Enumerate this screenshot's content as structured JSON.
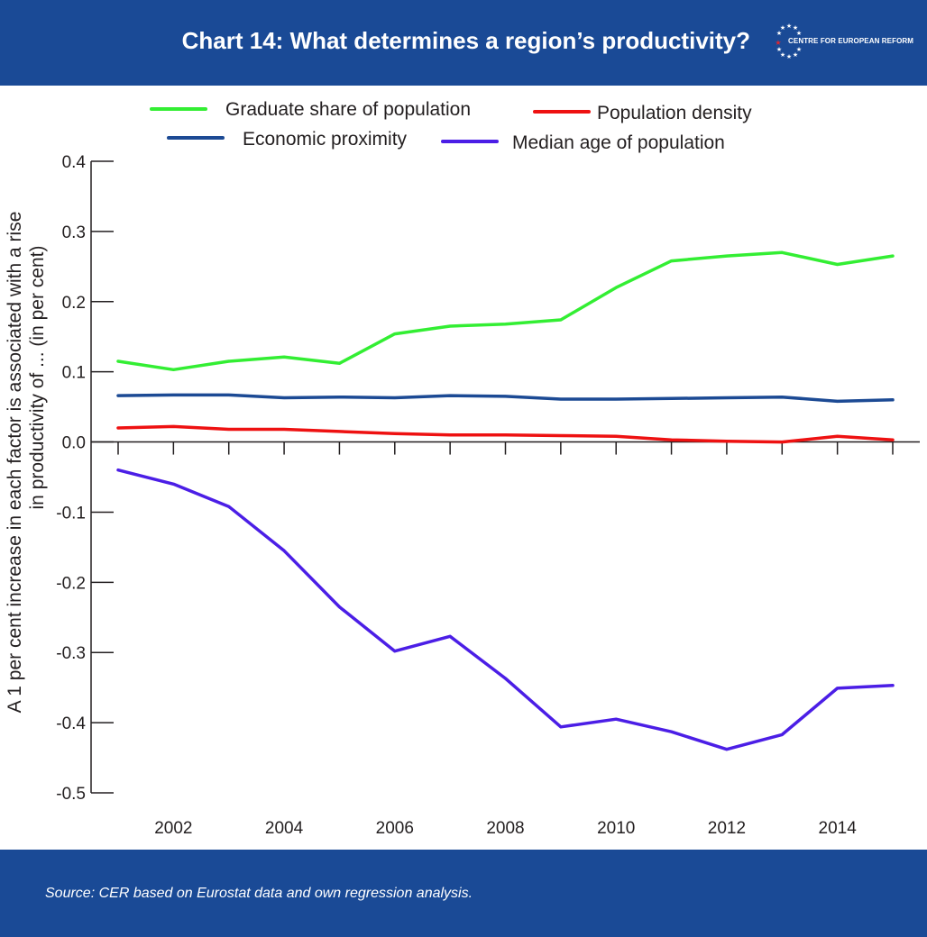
{
  "header": {
    "title": "Chart 14: What determines a region’s productivity?",
    "logo_text": "CENTRE FOR EUROPEAN REFORM"
  },
  "footer": {
    "source": "Source: CER based on Eurostat data and own regression analysis."
  },
  "colors": {
    "band": "#1a4a96",
    "graduate": "#33ee33",
    "density": "#ee1111",
    "proximity": "#1c4a94",
    "median_age": "#4b1ee6",
    "axis": "#231f20"
  },
  "chart_data": {
    "type": "line",
    "x": [
      2001,
      2002,
      2003,
      2004,
      2005,
      2006,
      2007,
      2008,
      2009,
      2010,
      2011,
      2012,
      2013,
      2014,
      2015
    ],
    "x_tick_labels": [
      "2002",
      "2004",
      "2006",
      "2008",
      "2010",
      "2012",
      "2014"
    ],
    "y_tick_labels": [
      "0.4",
      "0.3",
      "0.2",
      "0.1",
      "0.0",
      "-0.1",
      "-0.2",
      "-0.3",
      "-0.4",
      "-0.5"
    ],
    "ylim": [
      -0.5,
      0.4
    ],
    "xlabel": "",
    "ylabel_line1": "A 1 per cent increase in each factor is associated with a rise",
    "ylabel_line2": "in productivity of ... (in per cent)",
    "grid": false,
    "legend_position": "top",
    "series": [
      {
        "name": "Graduate share of population",
        "color": "#33ee33",
        "values": [
          0.115,
          0.103,
          0.115,
          0.121,
          0.112,
          0.154,
          0.165,
          0.168,
          0.174,
          0.22,
          0.258,
          0.265,
          0.27,
          0.253,
          0.265
        ]
      },
      {
        "name": "Population density",
        "color": "#ee1111",
        "values": [
          0.02,
          0.022,
          0.018,
          0.018,
          0.015,
          0.012,
          0.01,
          0.01,
          0.009,
          0.008,
          0.003,
          0.001,
          0.0,
          0.008,
          0.003
        ]
      },
      {
        "name": "Economic proximity",
        "color": "#1c4a94",
        "values": [
          0.066,
          0.067,
          0.067,
          0.063,
          0.064,
          0.063,
          0.066,
          0.065,
          0.061,
          0.061,
          0.062,
          0.063,
          0.064,
          0.058,
          0.06
        ]
      },
      {
        "name": "Median age of population",
        "color": "#4b1ee6",
        "values": [
          -0.04,
          -0.06,
          -0.092,
          -0.155,
          -0.235,
          -0.298,
          -0.277,
          -0.337,
          -0.406,
          -0.395,
          -0.413,
          -0.438,
          -0.417,
          -0.351,
          -0.347
        ]
      }
    ]
  }
}
